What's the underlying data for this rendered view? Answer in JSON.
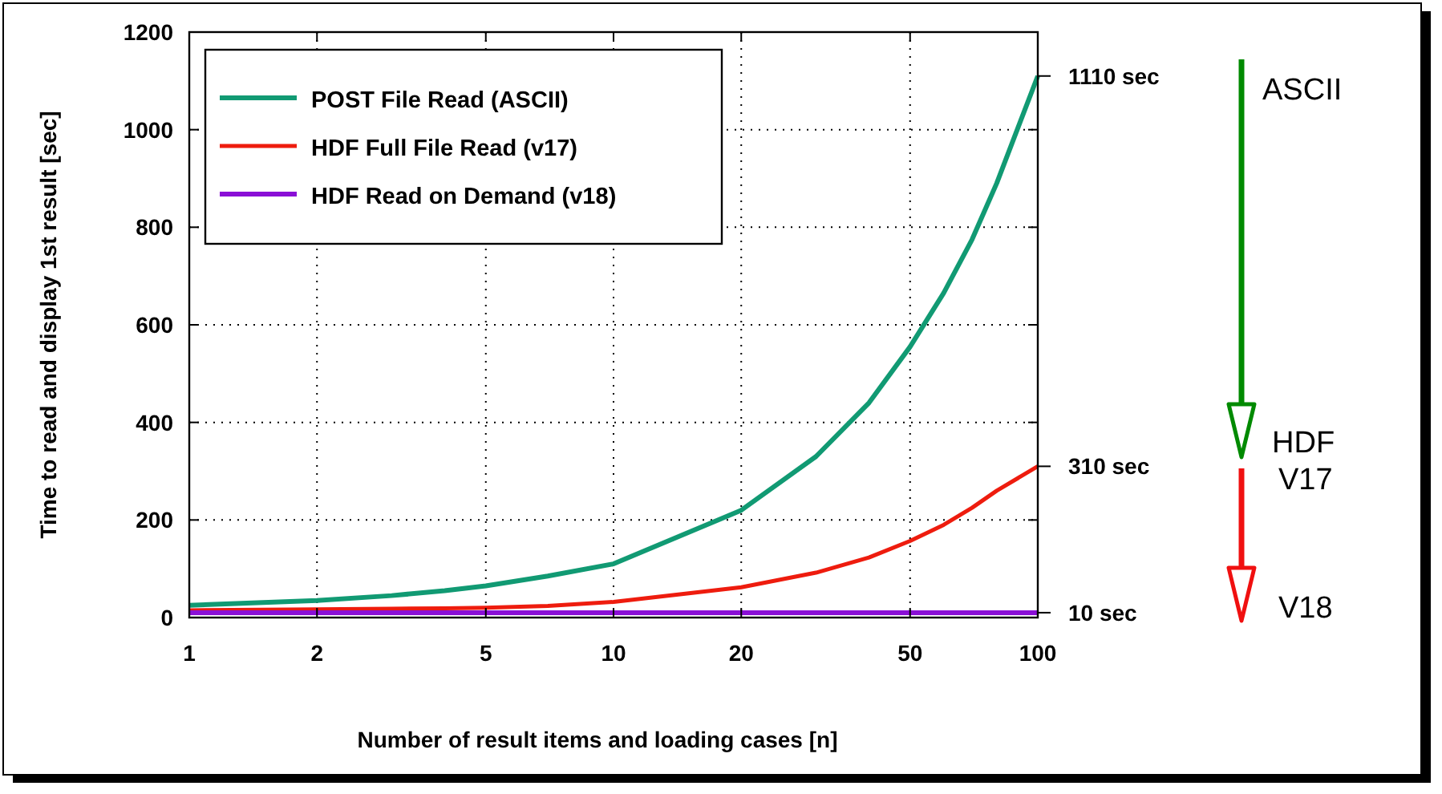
{
  "chart_data": {
    "type": "line",
    "xlabel": "Number of result items and loading cases   [n]",
    "ylabel": "Time to read and display 1st result   [sec]",
    "x": [
      1,
      2,
      3,
      4,
      5,
      7,
      10,
      20,
      30,
      40,
      50,
      60,
      70,
      80,
      100
    ],
    "series": [
      {
        "name": "POST  File Read  (ASCII)",
        "color": "#119a73",
        "values": [
          25,
          35,
          45,
          55,
          65,
          85,
          110,
          220,
          330,
          440,
          555,
          665,
          775,
          890,
          1110
        ]
      },
      {
        "name": "HDF  Full File Read  (v17)",
        "color": "#ee1c0e",
        "values": [
          15,
          17,
          18,
          19,
          20,
          24,
          32,
          62,
          92,
          123,
          157,
          190,
          225,
          260,
          310
        ]
      },
      {
        "name": "HDF Read on Demand (v18)",
        "color": "#8a0fd6",
        "values": [
          10,
          10,
          10,
          10,
          10,
          10,
          10,
          10,
          10,
          10,
          10,
          10,
          10,
          10,
          10
        ]
      }
    ],
    "log": "x",
    "xlim": [
      1,
      100
    ],
    "xticks": [
      1,
      2,
      5,
      10,
      20,
      50,
      100
    ],
    "ylim": [
      0,
      1200
    ],
    "yticks": [
      0,
      200,
      400,
      600,
      800,
      1000,
      1200
    ],
    "y2lim": [
      0,
      1200
    ],
    "y2ticks": [
      {
        "value": 10,
        "label": "10 sec"
      },
      {
        "value": 310,
        "label": "310 sec"
      },
      {
        "value": 1110,
        "label": "1110 sec"
      }
    ],
    "grid": true,
    "legend": "top left",
    "marker": "none",
    "line_style": "solid",
    "annotations": [
      "ASCII",
      "HDF",
      "V17",
      "V18"
    ]
  }
}
